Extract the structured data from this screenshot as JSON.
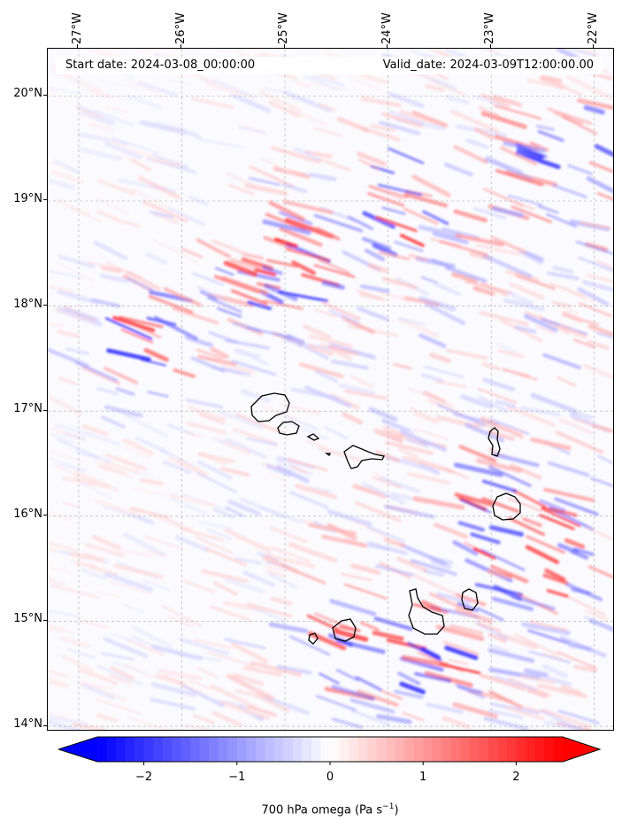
{
  "map": {
    "start_date_text": "Start date: 2024-03-08_00:00:00",
    "valid_date_text": "Valid_date: 2024-03-09T12:00:00.00",
    "field": "700 hPa omega",
    "lon_labels": [
      "27°W",
      "26°W",
      "25°W",
      "24°W",
      "23°W",
      "22°W"
    ],
    "lat_labels": [
      "20°N",
      "19°N",
      "18°N",
      "17°N",
      "16°N",
      "15°N",
      "14°N"
    ],
    "lon_values": [
      -27,
      -26,
      -25,
      -24,
      -23,
      -22
    ],
    "lat_values": [
      20,
      19,
      18,
      17,
      16,
      15,
      14
    ],
    "extent": {
      "lon_min": -27.3,
      "lon_max": -21.8,
      "lat_min": 13.95,
      "lat_max": 20.45
    },
    "gridlines": true,
    "islands": [
      "Santo Antão",
      "São Vicente",
      "Santa Luzia",
      "Branco",
      "São Nicolau",
      "Sal",
      "Boa Vista",
      "Brava",
      "Fogo",
      "Santiago",
      "Maio"
    ]
  },
  "colorbar": {
    "label_main": "700 hPa omega (Pa s",
    "label_sup": "−1",
    "label_end": ")",
    "ticks": [
      "−2",
      "−1",
      "0",
      "1",
      "2"
    ],
    "tick_values": [
      -2,
      -1,
      0,
      1,
      2
    ],
    "range": [
      -2.5,
      2.5
    ],
    "orientation": "horizontal",
    "extend": "both",
    "colormap": "bwr",
    "color_low": "#0000ff",
    "color_mid": "#ffffff",
    "color_high": "#ff0000"
  }
}
